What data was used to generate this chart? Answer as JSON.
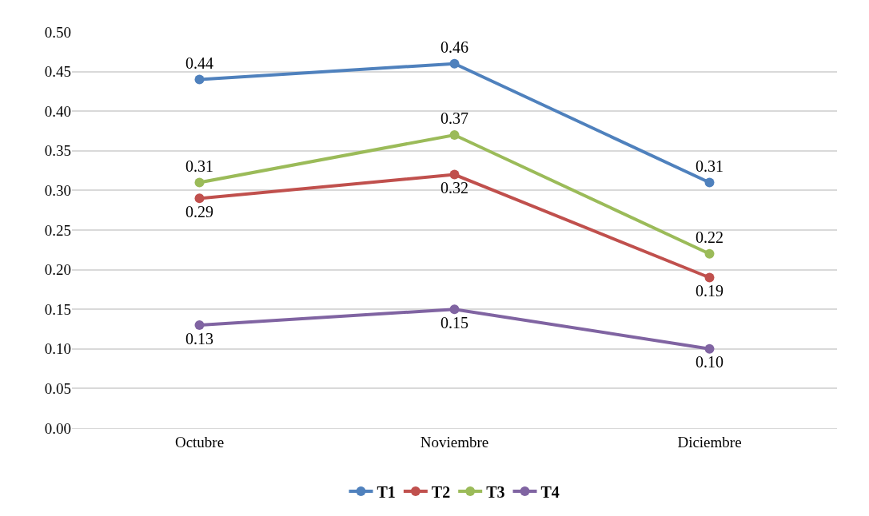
{
  "chart_data": {
    "type": "line",
    "categories": [
      "Octubre",
      "Noviembre",
      "Diciembre"
    ],
    "series": [
      {
        "name": "T1",
        "color": "#4f81bd",
        "values": [
          0.44,
          0.46,
          0.31
        ],
        "value_labels": [
          "0.44",
          "0.46",
          "0.31"
        ]
      },
      {
        "name": "T2",
        "color": "#c0504d",
        "values": [
          0.29,
          0.32,
          0.19
        ],
        "value_labels": [
          "0.29",
          "0.32",
          "0.19"
        ]
      },
      {
        "name": "T3",
        "color": "#9bbb59",
        "values": [
          0.31,
          0.37,
          0.22
        ],
        "value_labels": [
          "0.31",
          "0.37",
          "0.22"
        ]
      },
      {
        "name": "T4",
        "color": "#8064a2",
        "values": [
          0.13,
          0.15,
          0.1
        ],
        "value_labels": [
          "0.13",
          "0.15",
          "0.10"
        ]
      }
    ],
    "ylim": [
      0,
      0.5
    ],
    "yticks": [
      {
        "value": 0,
        "label": "0.00"
      },
      {
        "value": 0.05,
        "label": "0.05"
      },
      {
        "value": 0.1,
        "label": "0.10"
      },
      {
        "value": 0.15,
        "label": "0.15"
      },
      {
        "value": 0.2,
        "label": "0.20"
      },
      {
        "value": 0.25,
        "label": "0.25"
      },
      {
        "value": 0.3,
        "label": "0.30"
      },
      {
        "value": 0.35,
        "label": "0.35"
      },
      {
        "value": 0.4,
        "label": "0.40"
      },
      {
        "value": 0.45,
        "label": "0.45"
      },
      {
        "value": 0.5,
        "label": "0.50"
      }
    ],
    "grid": "y",
    "legend": "bottom",
    "marker": "circle",
    "line_style": "solid"
  }
}
